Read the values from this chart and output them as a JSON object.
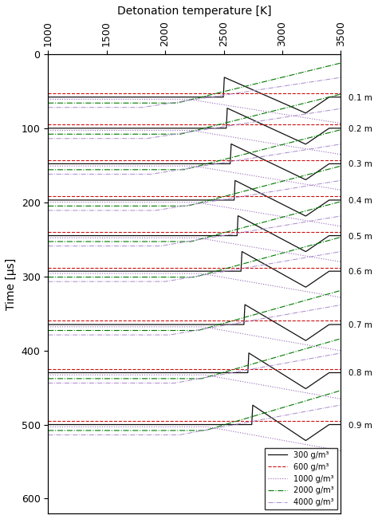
{
  "title": "Detonation temperature [K]",
  "ylabel": "Time [μs]",
  "xlim": [
    1000,
    3500
  ],
  "ylim": [
    0,
    620
  ],
  "xticks": [
    1000,
    1500,
    2000,
    2500,
    3000,
    3500
  ],
  "yticks": [
    0,
    100,
    200,
    300,
    400,
    500,
    600
  ],
  "positions_m": [
    "0.1 m",
    "0.2 m",
    "0.3 m",
    "0.4 m",
    "0.5 m",
    "0.6 m",
    "0.7 m",
    "0.8 m",
    "0.9 m"
  ],
  "time_offsets": [
    58,
    100,
    148,
    197,
    245,
    293,
    365,
    430,
    500
  ],
  "legend_labels": [
    "300 g/m³",
    "600 g/m³",
    "1000 g/m³",
    "2000 g/m³",
    "4000 g/m³"
  ],
  "series": [
    {
      "color": "#111111",
      "ls": "-",
      "lw": 0.9,
      "base_temp": 1050,
      "peak_temp": 3280,
      "label": "300 g/m³"
    },
    {
      "color": "#cc1111",
      "ls": "--",
      "lw": 0.8,
      "base_temp": 2920,
      "peak_temp": 3100,
      "label": "600 g/m³"
    },
    {
      "color": "#9966bb",
      "ls": ":",
      "lw": 0.8,
      "base_temp": 2480,
      "peak_temp": 2650,
      "label": "1000 g/m³"
    },
    {
      "color": "#007700",
      "ls": "-.",
      "lw": 0.8,
      "base_temp": 2180,
      "peak_temp": 2450,
      "label": "2000 g/m³"
    },
    {
      "color": "#aa88cc",
      "ls": "-.",
      "lw": 0.7,
      "base_temp": 1820,
      "peak_temp": 2000,
      "label": "4000 g/m³"
    }
  ],
  "bg_color": "#ffffff"
}
